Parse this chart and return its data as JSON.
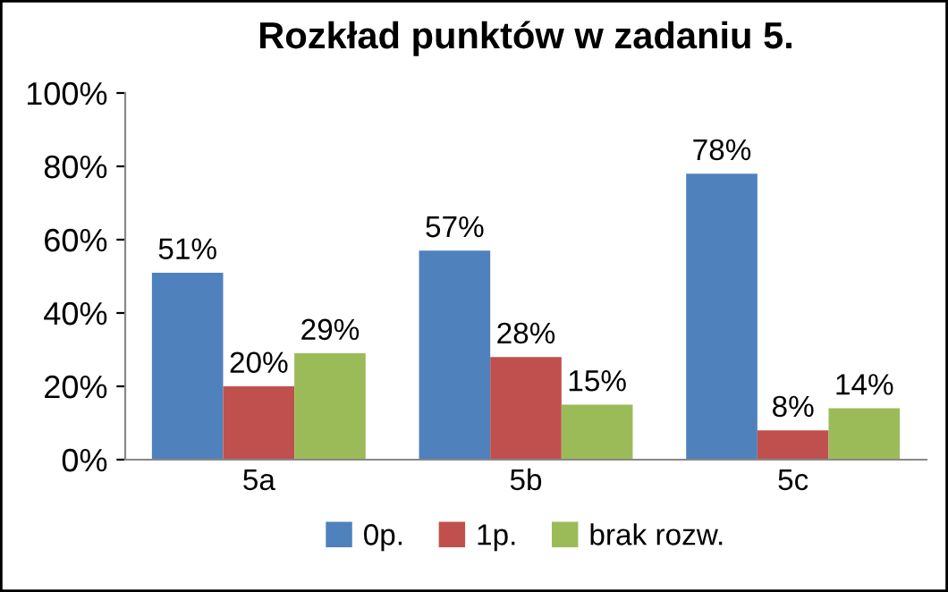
{
  "chart_data": {
    "type": "bar",
    "title": "Rozkład punktów w zadaniu 5.",
    "categories": [
      "5a",
      "5b",
      "5c"
    ],
    "series": [
      {
        "name": "0p.",
        "color": "#4f81bd",
        "values": [
          51,
          57,
          78
        ],
        "value_labels": [
          "51%",
          "57%",
          "78%"
        ]
      },
      {
        "name": "1p.",
        "color": "#c0504d",
        "values": [
          20,
          28,
          8
        ],
        "value_labels": [
          "20%",
          "28%",
          "8%"
        ]
      },
      {
        "name": "brak rozw.",
        "color": "#9bbb59",
        "values": [
          29,
          15,
          14
        ],
        "value_labels": [
          "29%",
          "15%",
          "14%"
        ]
      }
    ],
    "ylim": [
      0,
      100
    ],
    "yticks": [
      {
        "value": 0,
        "label": "0%"
      },
      {
        "value": 20,
        "label": "20%"
      },
      {
        "value": 40,
        "label": "40%"
      },
      {
        "value": 60,
        "label": "60%"
      },
      {
        "value": 80,
        "label": "80%"
      },
      {
        "value": 100,
        "label": "100%"
      }
    ],
    "grid": false,
    "legend": "bottom"
  }
}
